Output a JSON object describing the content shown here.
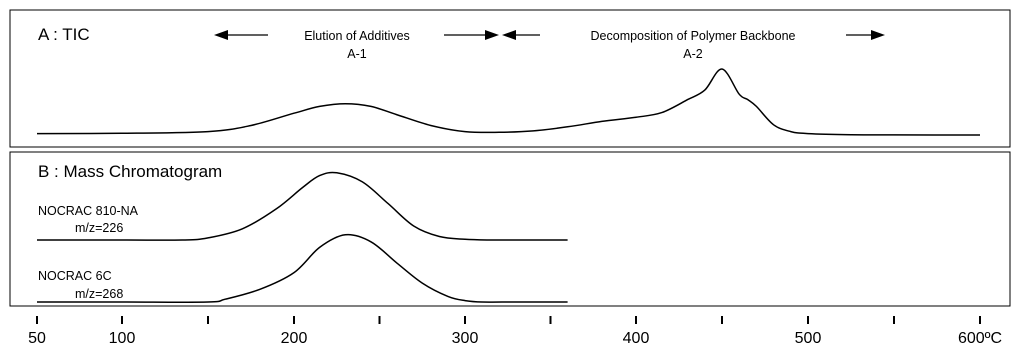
{
  "panel_a": {
    "title": "A : TIC",
    "region_1": {
      "label": "Elution of Additives",
      "sublabel": "A-1"
    },
    "region_2": {
      "label": "Decomposition of Polymer Backbone",
      "sublabel": "A-2"
    }
  },
  "panel_b": {
    "title": "B : Mass Chromatogram",
    "trace_1": {
      "name": "NOCRAC 810-NA",
      "mz": "m/z=226"
    },
    "trace_2": {
      "name": "NOCRAC 6C",
      "mz": "m/z=268"
    }
  },
  "axis": {
    "tick_labels": [
      {
        "value": 50,
        "label": "50"
      },
      {
        "value": 100,
        "label": "100"
      },
      {
        "value": 200,
        "label": "200"
      },
      {
        "value": 300,
        "label": "300"
      },
      {
        "value": 400,
        "label": "400"
      },
      {
        "value": 500,
        "label": "500"
      },
      {
        "value": 600,
        "label": "600ºC"
      }
    ],
    "unlabeled_ticks": [
      150,
      250,
      350,
      450,
      550
    ]
  },
  "chart_data": {
    "type": "line",
    "xlabel": "",
    "ylabel": "",
    "x_unit": "ºC",
    "xlim": [
      50,
      600
    ],
    "grid": false,
    "legend": "none",
    "series": [
      {
        "name": "A : TIC",
        "x": [
          50,
          100,
          150,
          175,
          200,
          215,
          230,
          245,
          260,
          280,
          300,
          320,
          340,
          360,
          380,
          400,
          415,
          430,
          440,
          450,
          460,
          465,
          470,
          480,
          490,
          500,
          525,
          550,
          600
        ],
        "y": [
          0.02,
          0.025,
          0.05,
          0.14,
          0.32,
          0.42,
          0.46,
          0.42,
          0.3,
          0.14,
          0.05,
          0.04,
          0.06,
          0.12,
          0.2,
          0.26,
          0.33,
          0.52,
          0.66,
          0.97,
          0.6,
          0.52,
          0.42,
          0.15,
          0.05,
          0.02,
          0.005,
          0.002,
          0.0
        ]
      },
      {
        "name": "NOCRAC 810-NA m/z=226",
        "x": [
          50,
          100,
          135,
          150,
          170,
          190,
          205,
          215,
          225,
          240,
          255,
          270,
          285,
          300,
          315,
          330,
          360
        ],
        "y": [
          0.0,
          0.0,
          0.0,
          0.03,
          0.16,
          0.45,
          0.75,
          0.92,
          0.96,
          0.83,
          0.52,
          0.2,
          0.05,
          0.01,
          0.0,
          0.0,
          0.0
        ]
      },
      {
        "name": "NOCRAC 6C m/z=268",
        "x": [
          50,
          100,
          150,
          160,
          180,
          200,
          215,
          230,
          245,
          260,
          275,
          290,
          300,
          310,
          330,
          360
        ],
        "y": [
          0.0,
          0.0,
          0.0,
          0.04,
          0.18,
          0.42,
          0.78,
          0.96,
          0.86,
          0.56,
          0.27,
          0.08,
          0.02,
          0.0,
          0.0,
          0.0
        ]
      }
    ]
  }
}
